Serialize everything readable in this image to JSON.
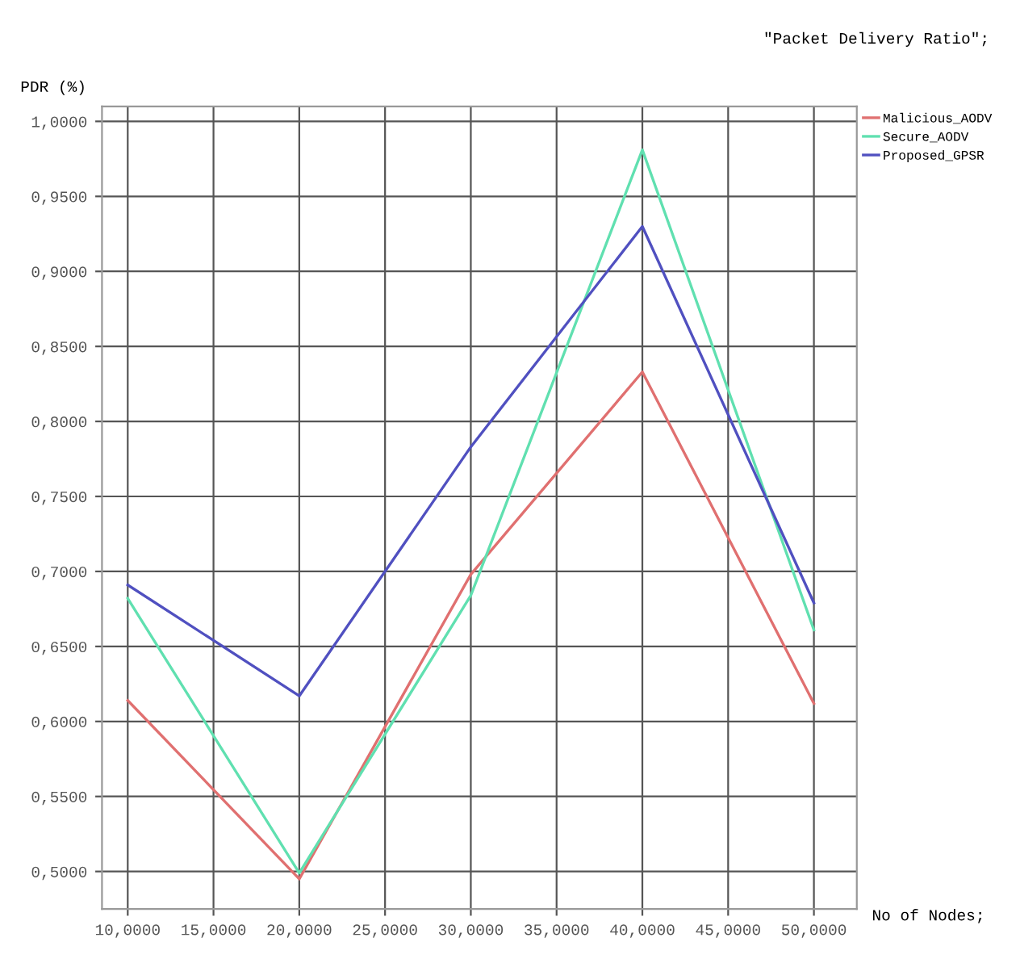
{
  "chart_data": {
    "type": "line",
    "title": "\"Packet Delivery Ratio\";",
    "xlabel": "No of Nodes;",
    "ylabel": "PDR (%)",
    "categories": [
      "10,0000",
      "15,0000",
      "20,0000",
      "25,0000",
      "30,0000",
      "35,0000",
      "40,0000",
      "45,0000",
      "50,0000"
    ],
    "series": [
      {
        "name": "Malicious_AODV",
        "color": "#e07070",
        "values": [
          0.614,
          null,
          0.495,
          null,
          0.698,
          null,
          0.833,
          null,
          0.612
        ]
      },
      {
        "name": "Secure_AODV",
        "color": "#60e0b0",
        "values": [
          0.682,
          null,
          0.499,
          null,
          0.684,
          null,
          0.981,
          null,
          0.661
        ]
      },
      {
        "name": "Proposed_GPSR",
        "color": "#5050c0",
        "values": [
          0.691,
          null,
          0.617,
          null,
          0.783,
          null,
          0.93,
          null,
          0.679
        ]
      }
    ],
    "ylim": [
      0.475,
      1.01
    ],
    "yticks": [
      {
        "value": 0.5,
        "label": "0,5000"
      },
      {
        "value": 0.55,
        "label": "0,5500"
      },
      {
        "value": 0.6,
        "label": "0,6000"
      },
      {
        "value": 0.65,
        "label": "0,6500"
      },
      {
        "value": 0.7,
        "label": "0,7000"
      },
      {
        "value": 0.75,
        "label": "0,7500"
      },
      {
        "value": 0.8,
        "label": "0,8000"
      },
      {
        "value": 0.85,
        "label": "0,8500"
      },
      {
        "value": 0.9,
        "label": "0,9000"
      },
      {
        "value": 0.95,
        "label": "0,9500"
      },
      {
        "value": 1.0,
        "label": "1,0000"
      }
    ],
    "grid": true,
    "legend": "top right",
    "marker": "none",
    "line_style": "solid"
  }
}
